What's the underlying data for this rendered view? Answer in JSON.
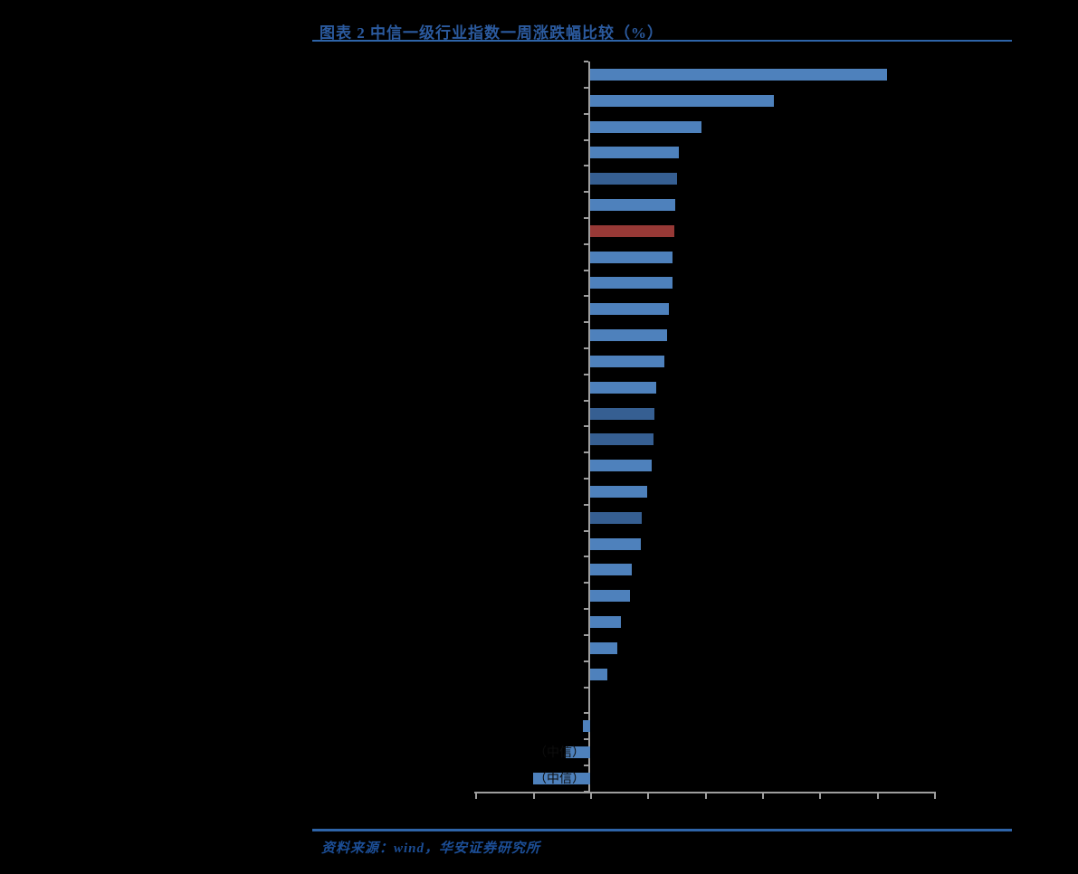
{
  "figure": {
    "title": "图表 2 中信一级行业指数一周涨跌幅比较（%）",
    "source": "资料来源：wind，华安证券研究所"
  },
  "colors": {
    "background": "#000000",
    "title_blue": "#2B5A9E",
    "rule_blue": "#2E64A8",
    "source_blue": "#1C4E96",
    "bar_blue": "#4E81BC",
    "bar_dark_blue": "#365F92",
    "bar_red": "#973936",
    "axis_gray": "#9E9E9E",
    "overlay_label_black": "#0D0D0D"
  },
  "chart_data": {
    "type": "bar",
    "orientation": "horizontal",
    "title": "中信一级行业指数一周涨跌幅比较（%）",
    "unit": "%",
    "xlim": [
      -2,
      6
    ],
    "x_tick_values_estimated": [
      -2,
      -1,
      0,
      1,
      2,
      3,
      4,
      5,
      6
    ],
    "tick_labels_visible": false,
    "category_labels_visible": false,
    "visible_label_fragments": [
      "信）",
      "（中信）"
    ],
    "legend": "none",
    "grid": false,
    "bars": [
      {
        "value": 5.17,
        "color": "blue"
      },
      {
        "value": 3.2,
        "color": "blue"
      },
      {
        "value": 1.94,
        "color": "blue"
      },
      {
        "value": 1.55,
        "color": "blue"
      },
      {
        "value": 1.51,
        "color": "dark"
      },
      {
        "value": 1.48,
        "color": "blue"
      },
      {
        "value": 1.46,
        "color": "red"
      },
      {
        "value": 1.44,
        "color": "blue"
      },
      {
        "value": 1.43,
        "color": "blue"
      },
      {
        "value": 1.37,
        "color": "blue"
      },
      {
        "value": 1.34,
        "color": "blue"
      },
      {
        "value": 1.29,
        "color": "blue"
      },
      {
        "value": 1.16,
        "color": "blue"
      },
      {
        "value": 1.12,
        "color": "dark"
      },
      {
        "value": 1.11,
        "color": "dark"
      },
      {
        "value": 1.07,
        "color": "blue"
      },
      {
        "value": 0.99,
        "color": "blue"
      },
      {
        "value": 0.9,
        "color": "dark"
      },
      {
        "value": 0.89,
        "color": "blue"
      },
      {
        "value": 0.72,
        "color": "blue"
      },
      {
        "value": 0.69,
        "color": "blue"
      },
      {
        "value": 0.54,
        "color": "blue"
      },
      {
        "value": 0.48,
        "color": "blue"
      },
      {
        "value": 0.3,
        "color": "blue"
      },
      {
        "value": 0.0,
        "color": "blue"
      },
      {
        "value": -0.13,
        "color": "blue"
      },
      {
        "value": -0.42,
        "color": "blue",
        "label_overlay": "（中信）"
      },
      {
        "value": -1.0,
        "color": "blue",
        "label_overlay": "（中信）"
      }
    ]
  }
}
